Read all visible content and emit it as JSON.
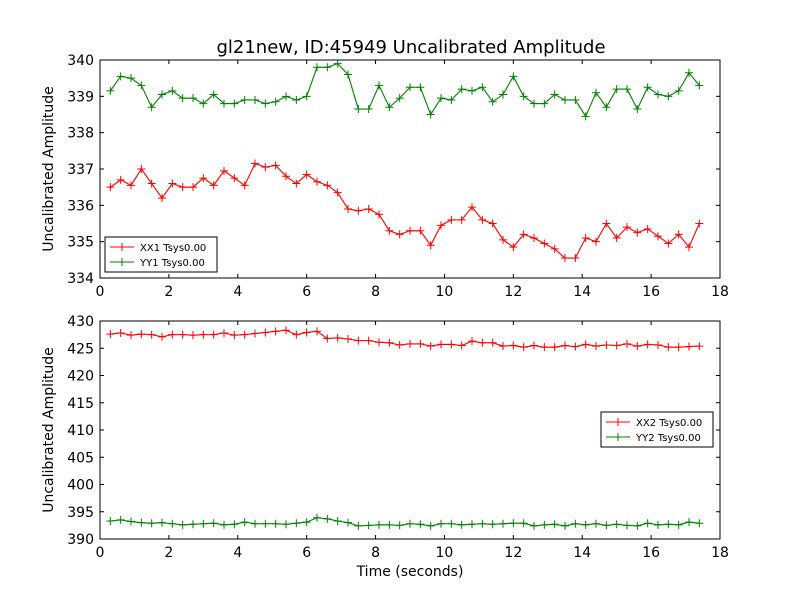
{
  "title": "gl21new, ID:45949 Uncalibrated Amplitude",
  "chart_data": [
    {
      "type": "line",
      "title": "gl21new, ID:45949 Uncalibrated Amplitude",
      "xlabel": "",
      "ylabel": "Uncalibrated Amplitude",
      "xlim": [
        0,
        18
      ],
      "ylim": [
        334,
        340
      ],
      "xticks": [
        "0",
        "2",
        "4",
        "6",
        "8",
        "10",
        "12",
        "14",
        "16",
        "18"
      ],
      "yticks": [
        "334",
        "335",
        "336",
        "337",
        "338",
        "339",
        "340"
      ],
      "grid": false,
      "legend_position": "lower-left",
      "marker": "+",
      "x": [
        0.3,
        0.6,
        0.9,
        1.2,
        1.5,
        1.8,
        2.1,
        2.4,
        2.7,
        3.0,
        3.3,
        3.6,
        3.9,
        4.2,
        4.5,
        4.8,
        5.1,
        5.4,
        5.7,
        6.0,
        6.3,
        6.6,
        6.9,
        7.2,
        7.5,
        7.8,
        8.1,
        8.4,
        8.7,
        9.0,
        9.3,
        9.6,
        9.9,
        10.2,
        10.5,
        10.8,
        11.1,
        11.4,
        11.7,
        12.0,
        12.3,
        12.6,
        12.9,
        13.2,
        13.5,
        13.8,
        14.1,
        14.4,
        14.7,
        15.0,
        15.3,
        15.6,
        15.9,
        16.2,
        16.5,
        16.8,
        17.1,
        17.4
      ],
      "series": [
        {
          "name": "XX1 Tsys0.00",
          "color": "#ff0000",
          "values": [
            336.5,
            336.7,
            336.55,
            337.0,
            336.6,
            336.2,
            336.6,
            336.5,
            336.5,
            336.75,
            336.55,
            336.95,
            336.75,
            336.55,
            337.15,
            337.05,
            337.1,
            336.8,
            336.6,
            336.85,
            336.65,
            336.55,
            336.35,
            335.9,
            335.85,
            335.9,
            335.75,
            335.3,
            335.2,
            335.3,
            335.3,
            334.9,
            335.45,
            335.6,
            335.6,
            335.95,
            335.6,
            335.5,
            335.05,
            334.85,
            335.2,
            335.1,
            334.95,
            334.8,
            334.55,
            334.55,
            335.1,
            335.0,
            335.5,
            335.1,
            335.4,
            335.25,
            335.35,
            335.15,
            334.95,
            335.2,
            334.85,
            335.5
          ]
        },
        {
          "name": "YY1 Tsys0.00",
          "color": "#008000",
          "values": [
            339.15,
            339.55,
            339.5,
            339.3,
            338.7,
            339.05,
            339.15,
            338.95,
            338.95,
            338.8,
            339.05,
            338.8,
            338.8,
            338.9,
            338.9,
            338.8,
            338.85,
            339.0,
            338.9,
            339.0,
            339.8,
            339.8,
            339.9,
            339.6,
            338.65,
            338.65,
            339.3,
            338.7,
            338.95,
            339.25,
            339.25,
            338.5,
            338.95,
            338.9,
            339.2,
            339.15,
            339.25,
            338.85,
            339.05,
            339.55,
            339.0,
            338.8,
            338.8,
            339.05,
            338.9,
            338.9,
            338.45,
            339.1,
            338.7,
            339.2,
            339.2,
            338.65,
            339.25,
            339.05,
            339.0,
            339.15,
            339.65,
            339.3
          ]
        }
      ]
    },
    {
      "type": "line",
      "title": "",
      "xlabel": "Time (seconds)",
      "ylabel": "Uncalibrated Amplitude",
      "xlim": [
        0,
        18
      ],
      "ylim": [
        390,
        430
      ],
      "xticks": [
        "0",
        "2",
        "4",
        "6",
        "8",
        "10",
        "12",
        "14",
        "16",
        "18"
      ],
      "yticks": [
        "390",
        "395",
        "400",
        "405",
        "410",
        "415",
        "420",
        "425",
        "430"
      ],
      "grid": false,
      "legend_position": "center-right",
      "marker": "+",
      "x": [
        0.3,
        0.6,
        0.9,
        1.2,
        1.5,
        1.8,
        2.1,
        2.4,
        2.7,
        3.0,
        3.3,
        3.6,
        3.9,
        4.2,
        4.5,
        4.8,
        5.1,
        5.4,
        5.7,
        6.0,
        6.3,
        6.6,
        6.9,
        7.2,
        7.5,
        7.8,
        8.1,
        8.4,
        8.7,
        9.0,
        9.3,
        9.6,
        9.9,
        10.2,
        10.5,
        10.8,
        11.1,
        11.4,
        11.7,
        12.0,
        12.3,
        12.6,
        12.9,
        13.2,
        13.5,
        13.8,
        14.1,
        14.4,
        14.7,
        15.0,
        15.3,
        15.6,
        15.9,
        16.2,
        16.5,
        16.8,
        17.1,
        17.4
      ],
      "series": [
        {
          "name": "XX2 Tsys0.00",
          "color": "#ff0000",
          "values": [
            427.6,
            427.8,
            427.4,
            427.6,
            427.5,
            427.1,
            427.5,
            427.5,
            427.4,
            427.5,
            427.5,
            427.8,
            427.4,
            427.5,
            427.7,
            427.9,
            428.1,
            428.3,
            427.5,
            427.9,
            428.1,
            426.8,
            426.9,
            426.7,
            426.4,
            426.4,
            426.1,
            426.0,
            425.6,
            425.8,
            425.8,
            425.4,
            425.7,
            425.7,
            425.5,
            426.3,
            426.0,
            426.0,
            425.4,
            425.5,
            425.2,
            425.5,
            425.2,
            425.2,
            425.5,
            425.3,
            425.7,
            425.4,
            425.6,
            425.5,
            425.8,
            425.4,
            425.7,
            425.6,
            425.2,
            425.2,
            425.3,
            425.4
          ]
        },
        {
          "name": "YY2 Tsys0.00",
          "color": "#008000",
          "values": [
            393.3,
            393.5,
            393.2,
            393.0,
            392.9,
            393.0,
            392.8,
            392.6,
            392.7,
            392.8,
            392.9,
            392.6,
            392.7,
            393.1,
            392.8,
            392.8,
            392.8,
            392.7,
            392.9,
            393.1,
            393.9,
            393.7,
            393.3,
            393.0,
            392.4,
            392.5,
            392.6,
            392.6,
            392.5,
            392.8,
            392.7,
            392.4,
            392.8,
            392.8,
            392.6,
            392.7,
            392.8,
            392.7,
            392.8,
            392.9,
            392.9,
            392.4,
            392.6,
            392.7,
            392.4,
            392.8,
            392.6,
            392.8,
            392.5,
            392.7,
            392.5,
            392.4,
            392.9,
            392.6,
            392.7,
            392.6,
            393.1,
            392.9
          ]
        }
      ]
    }
  ]
}
